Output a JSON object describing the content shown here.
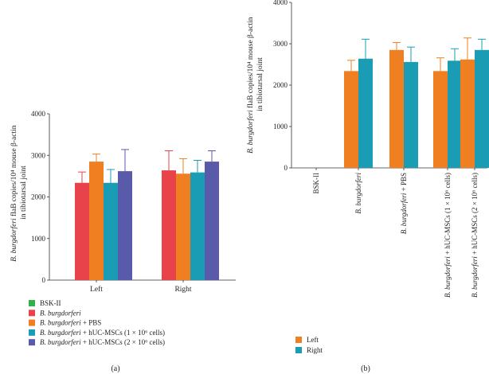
{
  "chart_data": [
    {
      "type": "bar",
      "panel_label": "(a)",
      "ylabel": "B. burgdorferi flaB copies/10⁴ mouse β-actin in tibiotarsal joint",
      "ylabel_line1": "B. burgdorferi flaB copies/10⁴ mouse β-actin",
      "ylabel_line2": "in tibiotarsal joint",
      "ylim": [
        0,
        4000
      ],
      "yticks": [
        "0",
        "1000",
        "2000",
        "3000",
        "4000"
      ],
      "ytick_values": [
        0,
        1000,
        2000,
        3000,
        4000
      ],
      "categories": [
        "Left",
        "Right"
      ],
      "legend": [
        "BSK-II",
        "B. burgdorferi",
        "B. burgdorferi + PBS",
        "B. burgdorferi + hUC-MSCs (1 × 10⁶ cells)",
        "B. burgdorferi + hUC-MSCs (2 × 10⁶ cells)"
      ],
      "series": [
        {
          "name": "BSK-II",
          "color": "#2fb34a",
          "values": [
            0,
            0
          ],
          "errors": [
            0,
            0
          ]
        },
        {
          "name": "B. burgdorferi",
          "color": "#e8434a",
          "values": [
            2340,
            2640
          ],
          "errors": [
            260,
            470
          ]
        },
        {
          "name": "B. burgdorferi + PBS",
          "color": "#f07f22",
          "values": [
            2850,
            2560
          ],
          "errors": [
            180,
            360
          ]
        },
        {
          "name": "B. burgdorferi + hUC-MSCs (1 × 10⁶ cells)",
          "color": "#1a9cb5",
          "values": [
            2340,
            2590
          ],
          "errors": [
            320,
            290
          ]
        },
        {
          "name": "B. burgdorferi + hUC-MSCs (2 × 10⁶ cells)",
          "color": "#5a5aab",
          "values": [
            2620,
            2850
          ],
          "errors": [
            520,
            260
          ]
        }
      ]
    },
    {
      "type": "bar",
      "panel_label": "(b)",
      "ylabel": "B. burgdorferi flaB copies/10⁴ mouse β-actin in tibiotarsal joint",
      "ylabel_line1": "B. burgdorferi flaB copies/10⁴ mouse β-actin",
      "ylabel_line2": "in tibiotarsal joint",
      "ylim": [
        0,
        4000
      ],
      "yticks": [
        "0",
        "1000",
        "2000",
        "3000",
        "4000"
      ],
      "ytick_values": [
        0,
        1000,
        2000,
        3000,
        4000
      ],
      "categories": [
        "BSK-II",
        "B. burgdorferi",
        "B. burgdorferi + PBS",
        "B. burgdorferi + hUC-MSCs (1 × 10⁶ cells)",
        "B. burgdorferi + hUC-MSCs (2 × 10⁶ cells)"
      ],
      "legend": [
        "Left",
        "Right"
      ],
      "series": [
        {
          "name": "Left",
          "color": "#f07f22",
          "values": [
            0,
            2340,
            2850,
            2340,
            2620
          ],
          "errors": [
            0,
            260,
            180,
            320,
            520
          ]
        },
        {
          "name": "Right",
          "color": "#1a9cb5",
          "values": [
            0,
            2640,
            2560,
            2590,
            2850
          ],
          "errors": [
            0,
            470,
            360,
            290,
            260
          ]
        }
      ]
    }
  ]
}
